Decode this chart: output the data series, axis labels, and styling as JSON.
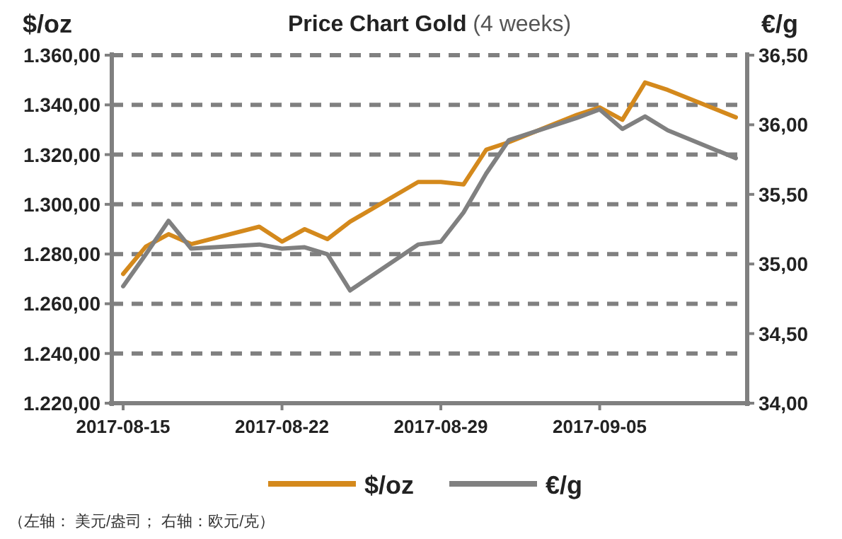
{
  "chart_data": {
    "type": "line",
    "title": "Price Chart Gold",
    "subtitle": "(4 weeks)",
    "ylabel": "$/oz",
    "y2label": "€/g",
    "x": [
      "2017-08-15",
      "2017-08-16",
      "2017-08-17",
      "2017-08-18",
      "2017-08-21",
      "2017-08-22",
      "2017-08-23",
      "2017-08-24",
      "2017-08-25",
      "2017-08-28",
      "2017-08-29",
      "2017-08-30",
      "2017-08-31",
      "2017-09-01",
      "2017-09-04",
      "2017-09-05",
      "2017-09-06",
      "2017-09-07",
      "2017-09-08",
      "2017-09-11"
    ],
    "series": [
      {
        "name": "$/oz",
        "color": "#d4891c",
        "values": [
          1272,
          1283,
          1288,
          1284,
          1291,
          1285,
          1290,
          1286,
          1293,
          1309,
          1309,
          1308,
          1322,
          1325,
          1336,
          1339,
          1334,
          1349,
          1346,
          1335
        ]
      },
      {
        "name": "€/g",
        "color": "#808080",
        "axis": "y2",
        "values": [
          34.84,
          35.07,
          35.31,
          35.11,
          35.14,
          35.11,
          35.12,
          35.07,
          34.81,
          35.14,
          35.16,
          35.37,
          35.65,
          35.89,
          36.05,
          36.11,
          35.97,
          36.06,
          35.96,
          35.76
        ]
      }
    ],
    "xlim": [
      "2017-08-14T12:00",
      "2017-09-11T12:00"
    ],
    "xticks": [
      {
        "value": "2017-08-15",
        "label": "2017-08-15"
      },
      {
        "value": "2017-08-22",
        "label": "2017-08-22"
      },
      {
        "value": "2017-08-29",
        "label": "2017-08-29"
      },
      {
        "value": "2017-09-05",
        "label": "2017-09-05"
      }
    ],
    "ylim": [
      1220,
      1360
    ],
    "yticks": [
      {
        "value": 1220,
        "label": "1.220,00"
      },
      {
        "value": 1240,
        "label": "1.240,00"
      },
      {
        "value": 1260,
        "label": "1.260,00"
      },
      {
        "value": 1280,
        "label": "1.280,00"
      },
      {
        "value": 1300,
        "label": "1.300,00"
      },
      {
        "value": 1320,
        "label": "1.320,00"
      },
      {
        "value": 1340,
        "label": "1.340,00"
      },
      {
        "value": 1360,
        "label": "1.360,00"
      }
    ],
    "y2lim": [
      34,
      36.5
    ],
    "y2ticks": [
      {
        "value": 34,
        "label": "34,00"
      },
      {
        "value": 34.5,
        "label": "34,50"
      },
      {
        "value": 35,
        "label": "35,00"
      },
      {
        "value": 35.5,
        "label": "35,50"
      },
      {
        "value": 36,
        "label": "36,00"
      },
      {
        "value": 36.5,
        "label": "36,50"
      }
    ],
    "grid": "y",
    "legend": "bottom",
    "marker": "none",
    "line_style": "solid",
    "annotations": [
      "（左轴： 美元/盎司； 右轴：欧元/克）"
    ]
  }
}
